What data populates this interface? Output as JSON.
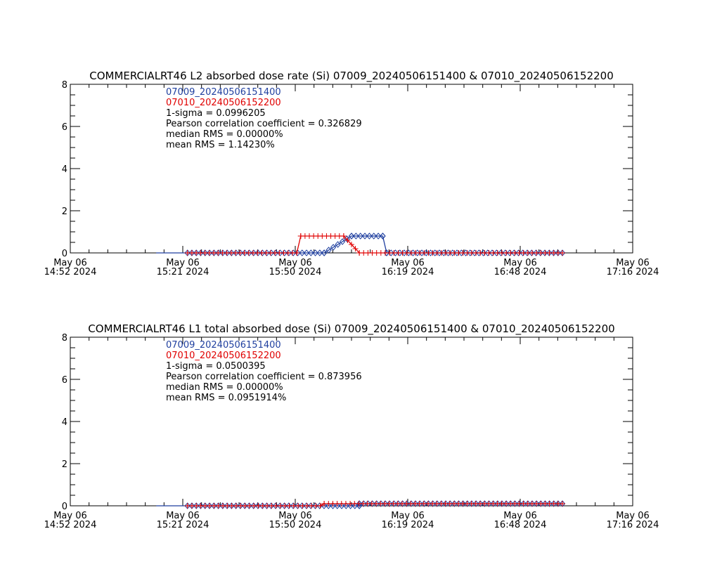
{
  "colors": {
    "series_a": "#1f3f9f",
    "series_b": "#e00000",
    "axis": "#000000",
    "text": "#000000",
    "background": "#ffffff"
  },
  "chart_data": [
    {
      "type": "line",
      "title": "COMMERCIALRT46 L2 absorbed dose rate (Si) 07009_20240506151400 & 07010_20240506152200",
      "xlabel": "",
      "ylabel": "",
      "xlim": [
        "2024-05-06 14:52",
        "2024-05-06 17:16"
      ],
      "ylim": [
        0,
        8
      ],
      "y_ticks": [
        0,
        2,
        4,
        6,
        8
      ],
      "x_ticks": [
        {
          "date": "May 06",
          "time": "14:52 2024"
        },
        {
          "date": "May 06",
          "time": "15:21 2024"
        },
        {
          "date": "May 06",
          "time": "15:50 2024"
        },
        {
          "date": "May 06",
          "time": "16:19 2024"
        },
        {
          "date": "May 06",
          "time": "16:48 2024"
        },
        {
          "date": "May 06",
          "time": "17:16 2024"
        }
      ],
      "grid": false,
      "legend_position": "top-left",
      "stats": [
        "1-sigma = 0.0996205",
        "Pearson correlation coefficient = 0.326829",
        "median RMS = 0.00000%",
        "mean RMS = 1.14230%"
      ],
      "series": [
        {
          "name": "07009_20240506151400",
          "color": "#1f3f9f",
          "marker": "diamond",
          "points": [
            [
              "2024-05-06 15:14",
              0.0,
              false
            ],
            [
              "2024-05-06 15:22",
              0.0,
              false
            ],
            [
              "2024-05-06 15:22",
              0.0,
              true
            ],
            [
              "2024-05-06 15:57",
              0.0,
              true
            ],
            [
              "2024-05-06 16:04",
              0.8,
              true
            ],
            [
              "2024-05-06 16:12",
              0.8,
              true
            ],
            [
              "2024-05-06 16:13",
              0.0,
              true
            ],
            [
              "2024-05-06 16:58",
              0.0,
              true
            ]
          ]
        },
        {
          "name": "07010_20240506152200",
          "color": "#e00000",
          "marker": "plus",
          "points": [
            [
              "2024-05-06 15:22",
              0.0,
              true
            ],
            [
              "2024-05-06 15:50",
              0.0,
              true
            ],
            [
              "2024-05-06 15:51",
              0.8,
              true
            ],
            [
              "2024-05-06 16:02",
              0.8,
              true
            ],
            [
              "2024-05-06 16:06",
              0.0,
              true
            ],
            [
              "2024-05-06 16:58",
              0.0,
              true
            ]
          ]
        }
      ]
    },
    {
      "type": "line",
      "title": "COMMERCIALRT46 L1 total absorbed dose (Si) 07009_20240506151400 & 07010_20240506152200",
      "xlabel": "",
      "ylabel": "",
      "xlim": [
        "2024-05-06 14:52",
        "2024-05-06 17:16"
      ],
      "ylim": [
        0,
        8
      ],
      "y_ticks": [
        0,
        2,
        4,
        6,
        8
      ],
      "x_ticks": [
        {
          "date": "May 06",
          "time": "14:52 2024"
        },
        {
          "date": "May 06",
          "time": "15:21 2024"
        },
        {
          "date": "May 06",
          "time": "15:50 2024"
        },
        {
          "date": "May 06",
          "time": "16:19 2024"
        },
        {
          "date": "May 06",
          "time": "16:48 2024"
        },
        {
          "date": "May 06",
          "time": "17:16 2024"
        }
      ],
      "grid": false,
      "legend_position": "top-left",
      "stats": [
        "1-sigma = 0.0500395",
        "Pearson correlation coefficient = 0.873956",
        "median RMS = 0.00000%",
        "mean RMS = 0.0951914%"
      ],
      "series": [
        {
          "name": "07009_20240506151400",
          "color": "#1f3f9f",
          "marker": "diamond",
          "points": [
            [
              "2024-05-06 15:14",
              0.0,
              false
            ],
            [
              "2024-05-06 15:22",
              0.0,
              false
            ],
            [
              "2024-05-06 15:22",
              0.0,
              true
            ],
            [
              "2024-05-06 16:06",
              0.0,
              true
            ],
            [
              "2024-05-06 16:06",
              0.1,
              true
            ],
            [
              "2024-05-06 16:58",
              0.1,
              true
            ]
          ]
        },
        {
          "name": "07010_20240506152200",
          "color": "#e00000",
          "marker": "plus",
          "points": [
            [
              "2024-05-06 15:22",
              0.0,
              true
            ],
            [
              "2024-05-06 15:56",
              0.0,
              true
            ],
            [
              "2024-05-06 15:57",
              0.1,
              true
            ],
            [
              "2024-05-06 16:58",
              0.1,
              true
            ]
          ]
        }
      ]
    }
  ]
}
